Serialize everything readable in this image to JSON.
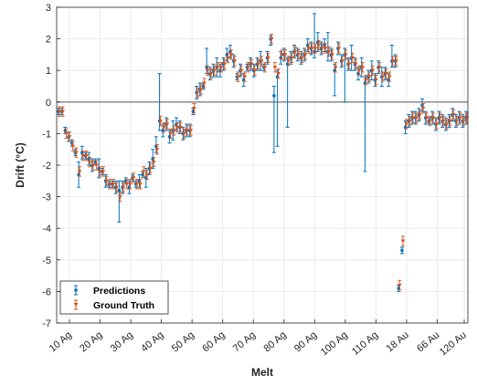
{
  "chart_data": {
    "type": "scatter",
    "title": "",
    "xlabel": "Melt",
    "ylabel": "Drift (°C)",
    "ylim": [
      -7,
      3
    ],
    "yticks": [
      3,
      2,
      1,
      0,
      -1,
      -2,
      -3,
      -4,
      -5,
      -6,
      -7
    ],
    "x_tick_labels": [
      "10 Ag",
      "20 Ag",
      "30 Ag",
      "40 Ag",
      "50 Ag",
      "60 Ag",
      "70 Ag",
      "80 Ag",
      "90 Ag",
      "100 Ag",
      "110 Ag",
      "18 Au",
      "66 Au",
      "120 Au"
    ],
    "grid": true,
    "reference_line": 0,
    "legend_position": "bottom-left",
    "colors": {
      "predictions": "#0072bd",
      "ground_truth": "#d95319",
      "zero_line": "#808080"
    },
    "series": [
      {
        "name": "Predictions",
        "marker": "dot",
        "values": [
          -0.3,
          -0.3,
          -0.9,
          -1.1,
          -1.3,
          -1.6,
          -2.3,
          -1.6,
          -1.7,
          -1.8,
          -2.0,
          -1.9,
          -2.1,
          -2.2,
          -2.5,
          -2.6,
          -2.6,
          -2.7,
          -2.8,
          -2.7,
          -2.5,
          -2.7,
          -2.4,
          -2.6,
          -2.5,
          -2.3,
          -2.4,
          -2.1,
          -1.8,
          -1.4,
          -0.6,
          -0.9,
          -0.7,
          -1.1,
          -0.9,
          -0.7,
          -0.8,
          -1.0,
          -0.9,
          -0.9,
          -0.3,
          0.3,
          0.4,
          0.5,
          1.1,
          0.9,
          1.0,
          1.1,
          1.0,
          1.2,
          1.5,
          1.6,
          1.3,
          0.8,
          1.0,
          0.7,
          1.1,
          1.2,
          1.0,
          1.2,
          1.3,
          1.1,
          1.4,
          2.0,
          0.2,
          0.8,
          1.4,
          1.5,
          1.2,
          1.4,
          1.6,
          1.5,
          1.4,
          1.5,
          1.8,
          1.7,
          1.6,
          1.9,
          1.7,
          1.8,
          1.6,
          1.5,
          1.0,
          1.7,
          1.3,
          1.5,
          1.2,
          1.4,
          1.2,
          0.9,
          1.1,
          0.6,
          0.8,
          1.0,
          0.7,
          1.1,
          0.8,
          0.9,
          0.7,
          1.3,
          1.3,
          -5.9,
          -4.7,
          -0.8,
          -0.6,
          -0.5,
          -0.5,
          -0.4,
          -0.1,
          -0.5,
          -0.6,
          -0.5,
          -0.7,
          -0.5,
          -0.6,
          -0.7,
          -0.6,
          -0.4,
          -0.6,
          -0.5,
          -0.6,
          -0.5
        ],
        "error_low": [
          0.1,
          0.1,
          0.1,
          0.15,
          0.1,
          0.1,
          0.4,
          0.2,
          0.1,
          0.2,
          0.2,
          0.1,
          0.3,
          0.1,
          0.2,
          0.1,
          0.1,
          0.2,
          1.0,
          0.2,
          0.1,
          0.2,
          0.1,
          0.1,
          0.2,
          0.1,
          0.3,
          0.2,
          0.3,
          0.2,
          0.3,
          0.2,
          0.2,
          0.2,
          0.3,
          0.2,
          0.2,
          0.2,
          0.2,
          0.2,
          0.1,
          0.2,
          0.2,
          0.1,
          0.2,
          0.2,
          0.2,
          0.3,
          0.2,
          0.2,
          0.2,
          0.2,
          0.2,
          0.1,
          0.2,
          0.2,
          0.1,
          0.2,
          0.2,
          0.2,
          0.3,
          0.1,
          0.2,
          0.2,
          1.8,
          2.2,
          0.2,
          0.2,
          2.0,
          0.2,
          0.2,
          0.2,
          0.2,
          0.2,
          0.2,
          0.2,
          0.2,
          0.3,
          0.2,
          0.2,
          0.3,
          0.2,
          0.8,
          0.2,
          0.2,
          1.5,
          0.2,
          0.4,
          0.2,
          0.2,
          0.3,
          2.8,
          0.2,
          0.3,
          0.2,
          0.2,
          0.3,
          0.2,
          0.2,
          0.2,
          0.2,
          0.1,
          0.1,
          0.2,
          0.2,
          0.2,
          0.2,
          0.2,
          0.2,
          0.2,
          0.1,
          0.2,
          0.2,
          0.2,
          0.2,
          0.2,
          0.2,
          0.2,
          0.2,
          0.2,
          0.2,
          0.2
        ],
        "error_high": [
          0.1,
          0.1,
          0.1,
          0.15,
          0.1,
          0.1,
          0.4,
          0.2,
          0.1,
          0.2,
          0.2,
          0.1,
          0.3,
          0.1,
          0.2,
          0.1,
          0.1,
          0.2,
          0.3,
          0.2,
          0.1,
          0.2,
          0.1,
          0.1,
          0.2,
          0.1,
          0.3,
          0.2,
          0.3,
          0.3,
          1.5,
          0.2,
          0.2,
          0.2,
          0.3,
          0.2,
          0.2,
          0.2,
          0.2,
          0.2,
          0.1,
          0.2,
          0.2,
          0.1,
          0.6,
          0.2,
          0.2,
          0.3,
          0.2,
          0.2,
          0.2,
          0.2,
          0.2,
          0.1,
          0.2,
          0.2,
          0.1,
          0.2,
          0.2,
          0.2,
          0.3,
          0.1,
          0.2,
          0.1,
          0.3,
          0.2,
          0.2,
          0.2,
          0.2,
          0.2,
          0.2,
          0.2,
          0.2,
          0.2,
          0.2,
          0.2,
          1.2,
          0.3,
          0.2,
          0.2,
          0.6,
          0.2,
          0.2,
          0.2,
          0.2,
          0.2,
          0.2,
          0.4,
          0.2,
          0.2,
          0.3,
          0.2,
          0.2,
          0.3,
          0.2,
          0.2,
          0.3,
          0.2,
          0.2,
          0.5,
          0.2,
          0.1,
          0.1,
          0.2,
          0.2,
          0.2,
          0.2,
          0.2,
          0.2,
          0.2,
          0.1,
          0.2,
          0.2,
          0.2,
          0.2,
          0.2,
          0.2,
          0.2,
          0.2,
          0.2,
          0.2,
          0.2
        ]
      },
      {
        "name": "Ground Truth",
        "marker": "triangle",
        "values": [
          -0.3,
          -0.3,
          -1.0,
          -1.1,
          -1.4,
          -1.6,
          -2.2,
          -1.7,
          -1.7,
          -1.9,
          -2.0,
          -2.0,
          -2.2,
          -2.2,
          -2.5,
          -2.6,
          -2.6,
          -2.7,
          -3.0,
          -2.7,
          -2.6,
          -2.6,
          -2.4,
          -2.6,
          -2.6,
          -2.2,
          -2.3,
          -2.1,
          -1.9,
          -1.5,
          -0.6,
          -0.8,
          -0.7,
          -1.0,
          -0.9,
          -0.8,
          -0.8,
          -1.0,
          -0.9,
          -0.9,
          -0.2,
          0.3,
          0.4,
          0.6,
          1.0,
          0.9,
          1.0,
          1.1,
          1.1,
          1.2,
          1.4,
          1.5,
          1.3,
          0.8,
          1.0,
          0.8,
          1.1,
          1.2,
          1.0,
          1.2,
          1.3,
          1.1,
          1.4,
          2.0,
          1.1,
          0.9,
          1.5,
          1.5,
          1.3,
          1.4,
          1.6,
          1.5,
          1.4,
          1.5,
          1.7,
          1.7,
          1.7,
          1.8,
          1.7,
          1.7,
          1.6,
          1.5,
          1.1,
          1.7,
          1.3,
          1.5,
          1.2,
          1.4,
          1.2,
          1.0,
          1.1,
          0.7,
          0.8,
          1.0,
          0.7,
          1.1,
          0.8,
          0.9,
          0.8,
          1.3,
          1.3,
          -5.8,
          -4.4,
          -0.7,
          -0.6,
          -0.5,
          -0.5,
          -0.4,
          -0.2,
          -0.5,
          -0.6,
          -0.5,
          -0.7,
          -0.5,
          -0.6,
          -0.7,
          -0.6,
          -0.4,
          -0.6,
          -0.5,
          -0.6,
          -0.5
        ],
        "error": 0.15
      }
    ]
  }
}
